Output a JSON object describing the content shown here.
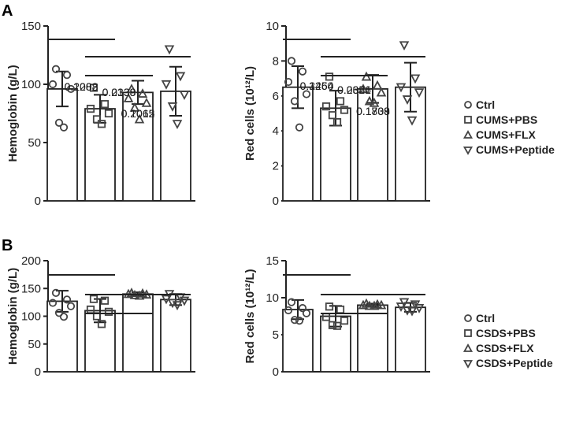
{
  "panels": [
    {
      "label": "A",
      "legend": [
        "Ctrl",
        "CUMS+PBS",
        "CUMS+FLX",
        "CUMS+Peptide"
      ],
      "markers": [
        "circle",
        "square",
        "triangle-up",
        "triangle-down"
      ]
    },
    {
      "label": "B",
      "legend": [
        "Ctrl",
        "CSDS+PBS",
        "CSDS+FLX",
        "CSDS+Peptide"
      ],
      "markers": [
        "circle",
        "square",
        "triangle-up",
        "triangle-down"
      ]
    }
  ],
  "chart_data": [
    {
      "type": "bar",
      "panel": "A",
      "ylabel": "Hemoglobin (g/L)",
      "ylim": [
        0,
        150
      ],
      "yticks": [
        0,
        50,
        100,
        150
      ],
      "groups": [
        "Ctrl",
        "CUMS+PBS",
        "CUMS+FLX",
        "CUMS+Peptide"
      ],
      "values": [
        96,
        79,
        93,
        94
      ],
      "errors": [
        15,
        12,
        10,
        21
      ],
      "points": [
        [
          113,
          108,
          100,
          96,
          67,
          63
        ],
        [
          97,
          83,
          79,
          75,
          70,
          66
        ],
        [
          96,
          92,
          88,
          84,
          80,
          70
        ],
        [
          130,
          107,
          100,
          91,
          81,
          66
        ]
      ],
      "comparisons": [
        {
          "from": 0,
          "to": 1,
          "label": "0.1208"
        },
        {
          "from": 1,
          "to": 3,
          "label": "0.2015"
        },
        {
          "from": 1,
          "to": 2,
          "label": "0.2339"
        }
      ]
    },
    {
      "type": "bar",
      "panel": "A",
      "ylabel": "Red cells (10¹²/L)",
      "ylim": [
        0,
        10
      ],
      "yticks": [
        0,
        2,
        4,
        6,
        8,
        10
      ],
      "groups": [
        "Ctrl",
        "CUMS+PBS",
        "CUMS+FLX",
        "CUMS+Peptide"
      ],
      "values": [
        6.5,
        5.3,
        6.4,
        6.5
      ],
      "errors": [
        1.2,
        1.0,
        0.8,
        1.4
      ],
      "points": [
        [
          8.0,
          7.4,
          6.8,
          6.1,
          5.7,
          4.2
        ],
        [
          7.1,
          5.7,
          5.4,
          5.2,
          4.9,
          4.5
        ],
        [
          7.1,
          6.6,
          6.4,
          6.2,
          5.7,
          5.6
        ],
        [
          8.9,
          7.0,
          6.5,
          6.2,
          5.8,
          4.6
        ]
      ],
      "comparisons": [
        {
          "from": 0,
          "to": 1,
          "label": "0.1464"
        },
        {
          "from": 1,
          "to": 3,
          "label": "0.1808"
        },
        {
          "from": 1,
          "to": 2,
          "label": "0.2356"
        }
      ]
    },
    {
      "type": "bar",
      "panel": "B",
      "ylabel": "Hemoglobin (g/L)",
      "ylim": [
        0,
        200
      ],
      "yticks": [
        0,
        50,
        100,
        150,
        200
      ],
      "groups": [
        "Ctrl",
        "CSDS+PBS",
        "CSDS+FLX",
        "CSDS+Peptide"
      ],
      "values": [
        127,
        110,
        140,
        130
      ],
      "errors": [
        19,
        21,
        3,
        10
      ],
      "points": [
        [
          142,
          130,
          124,
          118,
          106,
          99
        ],
        [
          131,
          128,
          112,
          108,
          100,
          86
        ],
        [
          142,
          141,
          140,
          139,
          138,
          137
        ],
        [
          140,
          134,
          131,
          128,
          124,
          120
        ]
      ],
      "comparisons": [
        {
          "from": 0,
          "to": 1,
          "label": "0.2082"
        },
        {
          "from": 1,
          "to": 3,
          "label": "0.1062"
        },
        {
          "from": 1,
          "to": 2,
          "label": "0.0138"
        }
      ]
    },
    {
      "type": "bar",
      "panel": "B",
      "ylabel": "Red cells (10¹²/L)",
      "ylim": [
        0,
        15
      ],
      "yticks": [
        0,
        5,
        10,
        15
      ],
      "groups": [
        "Ctrl",
        "CSDS+PBS",
        "CSDS+FLX",
        "CSDS+Peptide"
      ],
      "values": [
        8.4,
        7.5,
        9.0,
        8.7
      ],
      "errors": [
        1.3,
        1.4,
        0.2,
        0.6
      ],
      "points": [
        [
          9.4,
          8.6,
          8.3,
          7.9,
          7.0,
          6.9
        ],
        [
          8.8,
          8.4,
          7.4,
          6.9,
          6.3,
          6.2
        ],
        [
          9.2,
          9.1,
          9.0,
          9.0,
          8.9,
          8.9
        ],
        [
          9.4,
          9.1,
          8.8,
          8.6,
          8.3,
          8.2
        ]
      ],
      "comparisons": [
        {
          "from": 0,
          "to": 1,
          "label": "0.3250"
        },
        {
          "from": 1,
          "to": 3,
          "label": "0.1739"
        },
        {
          "from": 1,
          "to": 2,
          "label": "0.0621"
        }
      ]
    }
  ]
}
